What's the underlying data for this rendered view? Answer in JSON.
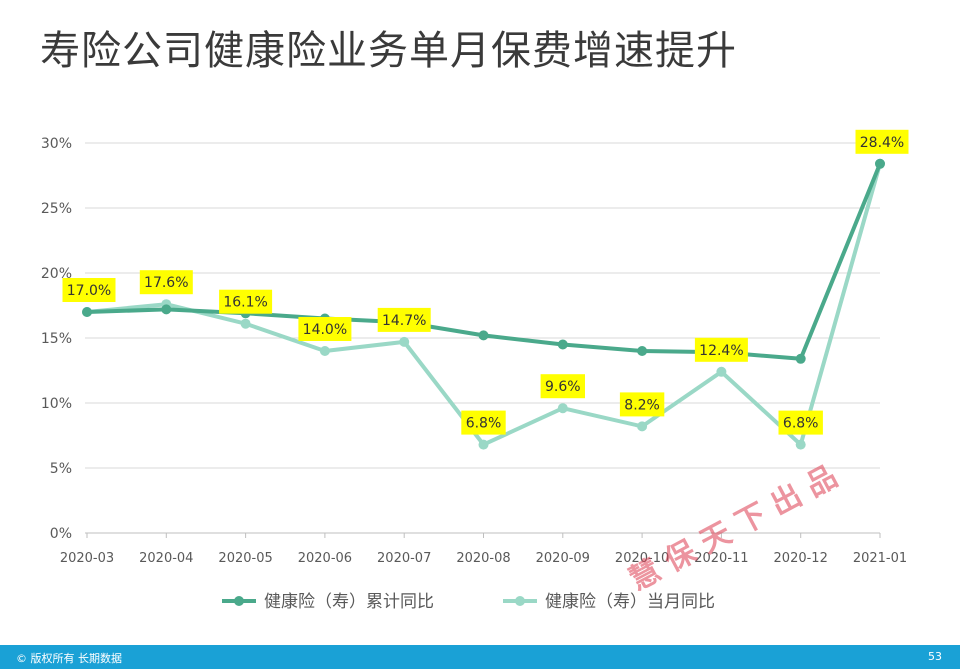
{
  "title": "寿险公司健康险业务单月保费增速提升",
  "footer": {
    "copyright": "© 版权所有 长期数据",
    "page": "53"
  },
  "watermark": "慧保天下出品",
  "colors": {
    "cumulative": "#4aa98b",
    "monthly": "#9ad8c6",
    "label_bg": "#ffff00",
    "footer": "#1aa1d6"
  },
  "chart_data": {
    "type": "line",
    "categories": [
      "2020-03",
      "2020-04",
      "2020-05",
      "2020-06",
      "2020-07",
      "2020-08",
      "2020-09",
      "2020-10",
      "2020-11",
      "2020-12",
      "2021-01"
    ],
    "ylim": [
      0,
      30
    ],
    "yticks": [
      "0%",
      "5%",
      "10%",
      "15%",
      "20%",
      "25%",
      "30%"
    ],
    "grid": true,
    "legend_position": "bottom",
    "series": [
      {
        "name": "健康险（寿）累计同比",
        "values": [
          17.0,
          17.2,
          16.9,
          16.5,
          16.2,
          15.2,
          14.5,
          14.0,
          13.9,
          13.4,
          28.4
        ]
      },
      {
        "name": "健康险（寿）当月同比",
        "values": [
          17.0,
          17.6,
          16.1,
          14.0,
          14.7,
          6.8,
          9.6,
          8.2,
          12.4,
          6.8,
          28.4
        ],
        "labels": [
          "17.0%",
          "17.6%",
          "16.1%",
          "14.0%",
          "14.7%",
          "6.8%",
          "9.6%",
          "8.2%",
          "12.4%",
          "6.8%",
          "28.4%"
        ]
      }
    ]
  }
}
